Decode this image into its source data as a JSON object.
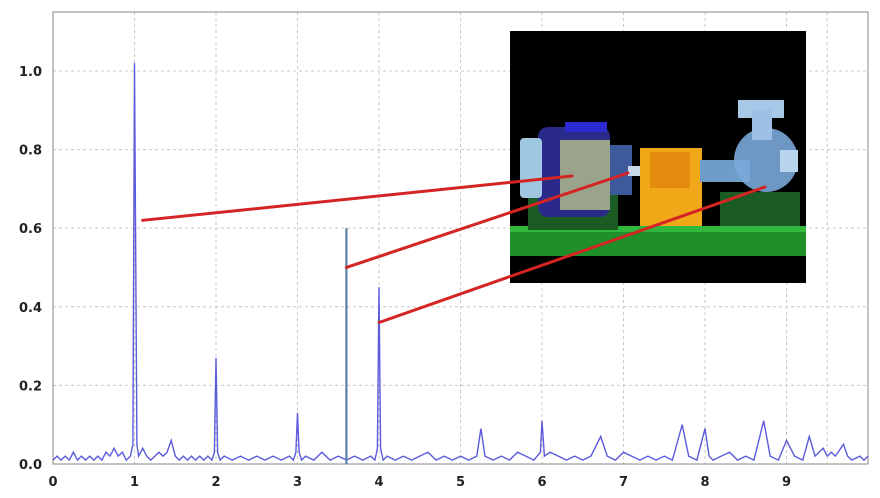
{
  "chart_data": {
    "type": "line",
    "title": "",
    "xlabel": "",
    "ylabel": "",
    "xlim": [
      0,
      10
    ],
    "ylim": [
      0,
      1.15
    ],
    "grid": true,
    "x_ticks": [
      "0",
      "1",
      "2",
      "3",
      "4",
      "5",
      "6",
      "7",
      "8",
      "9"
    ],
    "y_ticks": [
      "0.0",
      "0.2",
      "0.4",
      "0.6",
      "0.8",
      "1.0"
    ],
    "colors": {
      "spectrum": "#5b5bdc",
      "marker_line": "#5a7fa8",
      "callout": "#d42424",
      "grid": "#c8c8c8",
      "frame": "#888888"
    },
    "series": [
      {
        "values": [
          [
            0.0,
            0.01
          ],
          [
            0.05,
            0.02
          ],
          [
            0.1,
            0.01
          ],
          [
            0.15,
            0.02
          ],
          [
            0.2,
            0.01
          ],
          [
            0.25,
            0.03
          ],
          [
            0.3,
            0.01
          ],
          [
            0.35,
            0.02
          ],
          [
            0.4,
            0.01
          ],
          [
            0.45,
            0.02
          ],
          [
            0.5,
            0.01
          ],
          [
            0.55,
            0.02
          ],
          [
            0.6,
            0.01
          ],
          [
            0.65,
            0.03
          ],
          [
            0.7,
            0.02
          ],
          [
            0.75,
            0.04
          ],
          [
            0.8,
            0.02
          ],
          [
            0.85,
            0.03
          ],
          [
            0.9,
            0.01
          ],
          [
            0.95,
            0.02
          ],
          [
            0.98,
            0.05
          ],
          [
            1.0,
            1.02
          ],
          [
            1.01,
            0.7
          ],
          [
            1.03,
            0.05
          ],
          [
            1.05,
            0.02
          ],
          [
            1.1,
            0.04
          ],
          [
            1.15,
            0.02
          ],
          [
            1.2,
            0.01
          ],
          [
            1.25,
            0.02
          ],
          [
            1.3,
            0.03
          ],
          [
            1.35,
            0.02
          ],
          [
            1.4,
            0.03
          ],
          [
            1.45,
            0.06
          ],
          [
            1.5,
            0.02
          ],
          [
            1.55,
            0.01
          ],
          [
            1.6,
            0.02
          ],
          [
            1.65,
            0.01
          ],
          [
            1.7,
            0.02
          ],
          [
            1.75,
            0.01
          ],
          [
            1.8,
            0.02
          ],
          [
            1.85,
            0.01
          ],
          [
            1.9,
            0.02
          ],
          [
            1.95,
            0.01
          ],
          [
            1.98,
            0.03
          ],
          [
            2.0,
            0.27
          ],
          [
            2.02,
            0.03
          ],
          [
            2.05,
            0.01
          ],
          [
            2.1,
            0.02
          ],
          [
            2.2,
            0.01
          ],
          [
            2.3,
            0.02
          ],
          [
            2.4,
            0.01
          ],
          [
            2.5,
            0.02
          ],
          [
            2.6,
            0.01
          ],
          [
            2.7,
            0.02
          ],
          [
            2.8,
            0.01
          ],
          [
            2.9,
            0.02
          ],
          [
            2.95,
            0.01
          ],
          [
            2.98,
            0.03
          ],
          [
            3.0,
            0.13
          ],
          [
            3.02,
            0.03
          ],
          [
            3.05,
            0.01
          ],
          [
            3.1,
            0.02
          ],
          [
            3.2,
            0.01
          ],
          [
            3.3,
            0.03
          ],
          [
            3.4,
            0.01
          ],
          [
            3.5,
            0.02
          ],
          [
            3.6,
            0.01
          ],
          [
            3.7,
            0.02
          ],
          [
            3.8,
            0.01
          ],
          [
            3.9,
            0.02
          ],
          [
            3.95,
            0.01
          ],
          [
            3.98,
            0.04
          ],
          [
            4.0,
            0.45
          ],
          [
            4.02,
            0.04
          ],
          [
            4.05,
            0.01
          ],
          [
            4.1,
            0.02
          ],
          [
            4.2,
            0.01
          ],
          [
            4.3,
            0.02
          ],
          [
            4.4,
            0.01
          ],
          [
            4.5,
            0.02
          ],
          [
            4.6,
            0.03
          ],
          [
            4.7,
            0.01
          ],
          [
            4.8,
            0.02
          ],
          [
            4.9,
            0.01
          ],
          [
            5.0,
            0.02
          ],
          [
            5.1,
            0.01
          ],
          [
            5.2,
            0.02
          ],
          [
            5.25,
            0.09
          ],
          [
            5.3,
            0.02
          ],
          [
            5.4,
            0.01
          ],
          [
            5.5,
            0.02
          ],
          [
            5.6,
            0.01
          ],
          [
            5.7,
            0.03
          ],
          [
            5.8,
            0.02
          ],
          [
            5.9,
            0.01
          ],
          [
            5.98,
            0.03
          ],
          [
            6.0,
            0.11
          ],
          [
            6.03,
            0.02
          ],
          [
            6.1,
            0.03
          ],
          [
            6.2,
            0.02
          ],
          [
            6.3,
            0.01
          ],
          [
            6.4,
            0.02
          ],
          [
            6.5,
            0.01
          ],
          [
            6.6,
            0.02
          ],
          [
            6.72,
            0.07
          ],
          [
            6.8,
            0.02
          ],
          [
            6.9,
            0.01
          ],
          [
            7.0,
            0.03
          ],
          [
            7.1,
            0.02
          ],
          [
            7.2,
            0.01
          ],
          [
            7.3,
            0.02
          ],
          [
            7.4,
            0.01
          ],
          [
            7.5,
            0.02
          ],
          [
            7.6,
            0.01
          ],
          [
            7.72,
            0.1
          ],
          [
            7.8,
            0.02
          ],
          [
            7.9,
            0.01
          ],
          [
            8.0,
            0.09
          ],
          [
            8.05,
            0.02
          ],
          [
            8.1,
            0.01
          ],
          [
            8.2,
            0.02
          ],
          [
            8.3,
            0.03
          ],
          [
            8.4,
            0.01
          ],
          [
            8.5,
            0.02
          ],
          [
            8.6,
            0.01
          ],
          [
            8.72,
            0.11
          ],
          [
            8.8,
            0.02
          ],
          [
            8.9,
            0.01
          ],
          [
            9.0,
            0.06
          ],
          [
            9.1,
            0.02
          ],
          [
            9.2,
            0.01
          ],
          [
            9.28,
            0.07
          ],
          [
            9.35,
            0.02
          ],
          [
            9.45,
            0.04
          ],
          [
            9.5,
            0.02
          ],
          [
            9.55,
            0.03
          ],
          [
            9.6,
            0.02
          ],
          [
            9.7,
            0.05
          ],
          [
            9.75,
            0.02
          ],
          [
            9.8,
            0.01
          ],
          [
            9.9,
            0.02
          ],
          [
            9.95,
            0.01
          ],
          [
            10.0,
            0.02
          ]
        ]
      }
    ],
    "marker_line": {
      "x": 3.6,
      "y": 0.6
    },
    "callouts": [
      {
        "x": 1.1,
        "y": 0.62,
        "target": "motor"
      },
      {
        "x": 3.6,
        "y": 0.5,
        "target": "coupling"
      },
      {
        "x": 4.0,
        "y": 0.36,
        "target": "pump"
      }
    ],
    "inset_image": {
      "subject": "motor-coupling-pump-assembly"
    }
  }
}
